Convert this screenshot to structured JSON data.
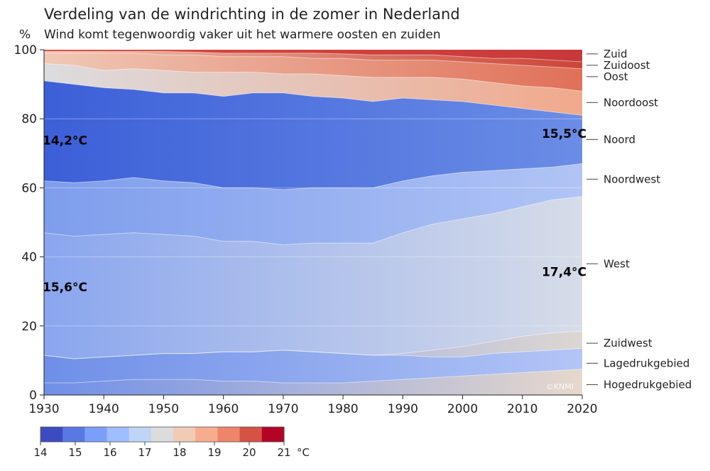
{
  "chart_data": {
    "type": "area",
    "title": "Verdeling van de windrichting in de zomer in Nederland",
    "subtitle": "Wind komt tegenwoordig vaker uit het warmere oosten en zuiden",
    "ylabel": "%",
    "xlim": [
      1930,
      2020
    ],
    "ylim": [
      0,
      100
    ],
    "x_ticks": [
      1930,
      1940,
      1950,
      1960,
      1970,
      1980,
      1990,
      2000,
      2010,
      2020
    ],
    "y_ticks": [
      0,
      20,
      40,
      60,
      80,
      100
    ],
    "x": [
      1930,
      1935,
      1940,
      1945,
      1950,
      1955,
      1960,
      1965,
      1970,
      1975,
      1980,
      1985,
      1990,
      1995,
      2000,
      2005,
      2010,
      2015,
      2020
    ],
    "boundaries": [
      {
        "above": "Hogedrukgebied",
        "values": [
          3.5,
          3.5,
          4,
          4.5,
          4.5,
          4.5,
          4,
          4,
          3.5,
          3.5,
          3.5,
          4,
          4.5,
          5,
          5.5,
          6,
          6.5,
          7,
          7.5
        ]
      },
      {
        "above": "Lagedrukgebied",
        "values": [
          11.5,
          10.5,
          11,
          11.5,
          12,
          12,
          12.5,
          12.5,
          13,
          12.5,
          12,
          11.5,
          11.5,
          11,
          11,
          12,
          12.5,
          13,
          13.5
        ]
      },
      {
        "above": "Zuidwest",
        "values": [
          11.5,
          10.5,
          11,
          11.5,
          12,
          12,
          12.5,
          12.5,
          13,
          12.5,
          12,
          11.5,
          12,
          13,
          14,
          15.5,
          17,
          18,
          18.5
        ]
      },
      {
        "above": "West",
        "values": [
          47,
          46,
          46.5,
          47,
          46.5,
          46,
          44.5,
          44.5,
          43.5,
          44,
          44,
          44,
          47,
          49.5,
          51,
          52.5,
          54.5,
          56.5,
          57.5
        ]
      },
      {
        "above": "Noordwest",
        "values": [
          62,
          61.5,
          62,
          63,
          62,
          61.5,
          60,
          60,
          59.5,
          60,
          60,
          60,
          62,
          63.5,
          64.5,
          65,
          65.5,
          66,
          67
        ]
      },
      {
        "above": "Noord",
        "values": [
          91,
          90,
          89,
          88.5,
          87.5,
          87.5,
          86.5,
          87.5,
          87.5,
          86.5,
          86,
          85,
          86,
          85.5,
          85,
          84,
          83,
          82,
          81
        ]
      },
      {
        "above": "Noordoost",
        "values": [
          96,
          95.5,
          94,
          94.5,
          94,
          93.5,
          93.5,
          93.5,
          93,
          93,
          92.5,
          92,
          92,
          92,
          91.5,
          90.5,
          89.5,
          89,
          88
        ]
      },
      {
        "above": "Oost",
        "values": [
          99,
          99,
          99,
          99,
          98.5,
          98.5,
          98,
          98,
          98,
          97.5,
          97.5,
          97,
          97,
          97,
          96.5,
          96,
          95.5,
          95,
          94.5
        ]
      },
      {
        "above": "Zuidoost",
        "values": [
          99.5,
          99.5,
          99.5,
          99.5,
          99.5,
          99.3,
          99,
          99,
          99,
          99,
          98.8,
          98.5,
          98.5,
          98.5,
          98,
          97.5,
          97.5,
          97,
          96.5
        ]
      }
    ],
    "series": [
      {
        "name": "Hogedrukgebied",
        "label_y": 3,
        "color_start": "#6f8fe8",
        "color_end": "#e6d8cc"
      },
      {
        "name": "Lagedrukgebied",
        "label_y": 9.2,
        "color_start": "#6f8fe8",
        "color_end": "#b2c5f6"
      },
      {
        "name": "Zuidwest",
        "label_y": 15,
        "color_start": "#7a98ea",
        "color_end": "#ddd6d2"
      },
      {
        "name": "West",
        "label_y": 38,
        "color_start": "#8aa6ee",
        "color_end": "#d6dce8"
      },
      {
        "name": "Noordwest",
        "label_y": 62.5,
        "color_start": "#7e9dec",
        "color_end": "#b0c4f5"
      },
      {
        "name": "Noord",
        "label_y": 74,
        "color_start": "#3c5fd8",
        "color_end": "#6b8de6"
      },
      {
        "name": "Noordoost",
        "label_y": 84.7,
        "color_start": "#dcdcdf",
        "color_end": "#f1a98c"
      },
      {
        "name": "Oost",
        "label_y": 92.2,
        "color_start": "#f0c8b6",
        "color_end": "#e07058"
      },
      {
        "name": "Zuidoost",
        "label_y": 95.5,
        "color_start": "#efc2ad",
        "color_end": "#cc4438"
      },
      {
        "name": "Zuid",
        "label_y": 98.8,
        "color_start": "#d94d42",
        "color_end": "#c8383a"
      }
    ],
    "annotations": [
      {
        "text": "14,2°C",
        "x": 1930,
        "y": 72.5,
        "anchor": "start"
      },
      {
        "text": "15,5°C",
        "x": 2020,
        "y": 74.5,
        "anchor": "end"
      },
      {
        "text": "15,6°C",
        "x": 1930,
        "y": 30,
        "anchor": "start"
      },
      {
        "text": "17,4°C",
        "x": 2020,
        "y": 34.5,
        "anchor": "end"
      }
    ],
    "colorbar": {
      "min": 14,
      "max": 21,
      "ticks": [
        14,
        15,
        16,
        17,
        18,
        19,
        20,
        21
      ],
      "unit": "°C",
      "colors": [
        "#3b4cc0",
        "#5a78e4",
        "#7b9ff9",
        "#9ebeff",
        "#c0d4f5",
        "#dddcdc",
        "#f2cbb7",
        "#f7ac8e",
        "#ee8468",
        "#d65244",
        "#b40426"
      ]
    },
    "credit": "©KNMI"
  }
}
